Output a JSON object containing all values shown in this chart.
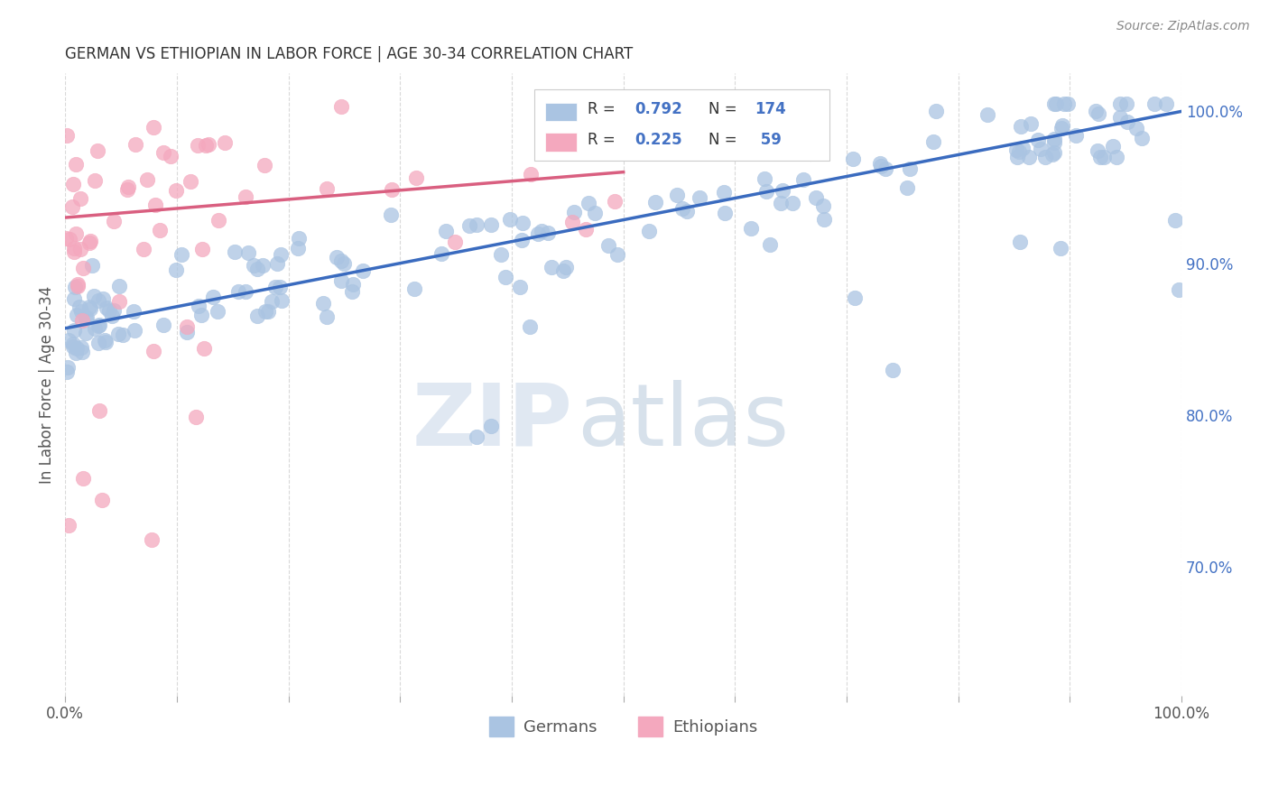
{
  "title": "GERMAN VS ETHIOPIAN IN LABOR FORCE | AGE 30-34 CORRELATION CHART",
  "source": "Source: ZipAtlas.com",
  "ylabel": "In Labor Force | Age 30-34",
  "german_R": 0.792,
  "german_N": 174,
  "ethiopian_R": 0.225,
  "ethiopian_N": 59,
  "german_color": "#aac4e2",
  "ethiopian_color": "#f4a8be",
  "german_line_color": "#3a6bbf",
  "ethiopian_line_color": "#d95f80",
  "legend_text_color": "#4472c4",
  "background_color": "#ffffff",
  "grid_color": "#d0d0d0",
  "seed": 42,
  "xlim": [
    0.0,
    1.0
  ],
  "ylim": [
    0.615,
    1.025
  ],
  "right_ytick_positions": [
    0.7,
    0.8,
    0.9,
    1.0
  ],
  "right_ytick_labels": [
    "70.0%",
    "80.0%",
    "90.0%",
    "100.0%"
  ],
  "german_intercept": 0.857,
  "german_slope": 0.143,
  "ethiopian_intercept": 0.93,
  "ethiopian_slope": 0.06
}
